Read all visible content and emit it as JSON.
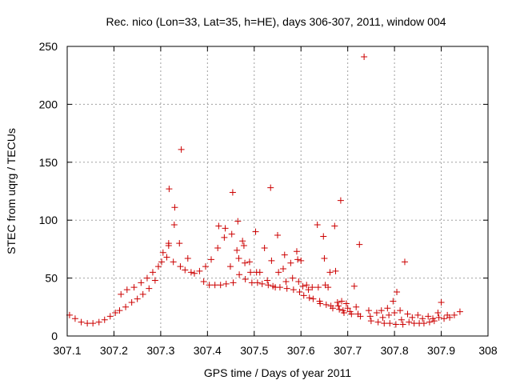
{
  "chart_data": {
    "type": "scatter",
    "title": "Rec. nico (Lon=33, Lat=35, h=HE), days 306-307, 2011, window 004",
    "xlabel": "GPS time / Days of year 2011",
    "ylabel": "STEC from uqrg / TECUs",
    "xlim": [
      307.1,
      308.0
    ],
    "ylim": [
      0,
      250
    ],
    "xticks": [
      "307.1",
      "307.2",
      "307.3",
      "307.4",
      "307.5",
      "307.6",
      "307.7",
      "307.8",
      "307.9",
      "308"
    ],
    "yticks": [
      "0",
      "50",
      "100",
      "150",
      "200",
      "250"
    ],
    "xtick_values": [
      307.1,
      307.2,
      307.3,
      307.4,
      307.5,
      307.6,
      307.7,
      307.8,
      307.9,
      308.0
    ],
    "ytick_values": [
      0,
      50,
      100,
      150,
      200,
      250
    ],
    "grid": true,
    "marker_color": "#cc0000",
    "series": [
      {
        "name": "STEC",
        "marker": "plus",
        "points": [
          [
            307.105,
            18
          ],
          [
            307.117,
            15
          ],
          [
            307.13,
            12
          ],
          [
            307.143,
            11
          ],
          [
            307.155,
            11
          ],
          [
            307.168,
            12
          ],
          [
            307.18,
            14
          ],
          [
            307.192,
            17
          ],
          [
            307.203,
            20
          ],
          [
            307.212,
            22
          ],
          [
            307.215,
            36
          ],
          [
            307.225,
            25
          ],
          [
            307.228,
            40
          ],
          [
            307.238,
            29
          ],
          [
            307.243,
            42
          ],
          [
            307.25,
            32
          ],
          [
            307.258,
            46
          ],
          [
            307.262,
            36
          ],
          [
            307.271,
            50
          ],
          [
            307.275,
            41
          ],
          [
            307.283,
            55
          ],
          [
            307.288,
            48
          ],
          [
            307.295,
            60
          ],
          [
            307.302,
            64
          ],
          [
            307.305,
            72
          ],
          [
            307.313,
            68
          ],
          [
            307.317,
            80
          ],
          [
            307.317,
            78
          ],
          [
            307.318,
            127
          ],
          [
            307.327,
            64
          ],
          [
            307.329,
            96
          ],
          [
            307.33,
            111
          ],
          [
            307.34,
            80
          ],
          [
            307.342,
            60
          ],
          [
            307.344,
            161
          ],
          [
            307.352,
            57
          ],
          [
            307.358,
            67
          ],
          [
            307.365,
            55
          ],
          [
            307.372,
            54
          ],
          [
            307.383,
            56
          ],
          [
            307.392,
            47
          ],
          [
            307.396,
            60
          ],
          [
            307.404,
            44
          ],
          [
            307.408,
            66
          ],
          [
            307.416,
            44
          ],
          [
            307.422,
            76
          ],
          [
            307.424,
            95
          ],
          [
            307.428,
            44
          ],
          [
            307.436,
            85
          ],
          [
            307.438,
            93
          ],
          [
            307.44,
            45
          ],
          [
            307.449,
            60
          ],
          [
            307.452,
            88
          ],
          [
            307.454,
            124
          ],
          [
            307.455,
            46
          ],
          [
            307.463,
            74
          ],
          [
            307.465,
            99
          ],
          [
            307.467,
            67
          ],
          [
            307.468,
            53
          ],
          [
            307.475,
            82
          ],
          [
            307.478,
            78
          ],
          [
            307.48,
            63
          ],
          [
            307.481,
            49
          ],
          [
            307.49,
            64
          ],
          [
            307.492,
            55
          ],
          [
            307.495,
            46
          ],
          [
            307.503,
            90
          ],
          [
            307.505,
            55
          ],
          [
            307.507,
            46
          ],
          [
            307.512,
            55
          ],
          [
            307.517,
            45
          ],
          [
            307.522,
            76
          ],
          [
            307.528,
            48
          ],
          [
            307.53,
            44
          ],
          [
            307.535,
            128
          ],
          [
            307.537,
            65
          ],
          [
            307.54,
            43
          ],
          [
            307.545,
            42
          ],
          [
            307.55,
            87
          ],
          [
            307.552,
            55
          ],
          [
            307.555,
            42
          ],
          [
            307.562,
            58
          ],
          [
            307.565,
            70
          ],
          [
            307.568,
            47
          ],
          [
            307.57,
            41
          ],
          [
            307.578,
            63
          ],
          [
            307.582,
            50
          ],
          [
            307.584,
            40
          ],
          [
            307.591,
            73
          ],
          [
            307.593,
            66
          ],
          [
            307.595,
            47
          ],
          [
            307.597,
            38
          ],
          [
            307.6,
            65
          ],
          [
            307.604,
            43
          ],
          [
            307.606,
            35
          ],
          [
            307.612,
            44
          ],
          [
            307.616,
            40
          ],
          [
            307.618,
            33
          ],
          [
            307.624,
            42
          ],
          [
            307.626,
            32
          ],
          [
            307.635,
            96
          ],
          [
            307.637,
            42
          ],
          [
            307.64,
            30
          ],
          [
            307.641,
            28
          ],
          [
            307.648,
            86
          ],
          [
            307.65,
            67
          ],
          [
            307.652,
            44
          ],
          [
            307.654,
            27
          ],
          [
            307.658,
            42
          ],
          [
            307.662,
            55
          ],
          [
            307.664,
            26
          ],
          [
            307.668,
            24
          ],
          [
            307.672,
            95
          ],
          [
            307.674,
            56
          ],
          [
            307.678,
            29
          ],
          [
            307.68,
            26
          ],
          [
            307.682,
            23
          ],
          [
            307.685,
            117
          ],
          [
            307.687,
            30
          ],
          [
            307.69,
            22
          ],
          [
            307.692,
            20
          ],
          [
            307.697,
            28
          ],
          [
            307.7,
            24
          ],
          [
            307.705,
            21
          ],
          [
            307.708,
            19
          ],
          [
            307.714,
            43
          ],
          [
            307.718,
            25
          ],
          [
            307.722,
            19
          ],
          [
            307.725,
            79
          ],
          [
            307.727,
            17
          ],
          [
            307.735,
            241
          ],
          [
            307.745,
            22
          ],
          [
            307.748,
            17
          ],
          [
            307.75,
            13
          ],
          [
            307.762,
            20
          ],
          [
            307.765,
            12
          ],
          [
            307.772,
            22
          ],
          [
            307.775,
            16
          ],
          [
            307.778,
            11
          ],
          [
            307.785,
            24
          ],
          [
            307.788,
            18
          ],
          [
            307.79,
            11
          ],
          [
            307.797,
            30
          ],
          [
            307.8,
            20
          ],
          [
            307.803,
            10
          ],
          [
            307.805,
            38
          ],
          [
            307.812,
            22
          ],
          [
            307.815,
            14
          ],
          [
            307.818,
            10
          ],
          [
            307.822,
            64
          ],
          [
            307.828,
            19
          ],
          [
            307.831,
            12
          ],
          [
            307.838,
            16
          ],
          [
            307.842,
            11
          ],
          [
            307.85,
            18
          ],
          [
            307.853,
            11
          ],
          [
            307.86,
            15
          ],
          [
            307.863,
            11
          ],
          [
            307.872,
            17
          ],
          [
            307.875,
            12
          ],
          [
            307.882,
            15
          ],
          [
            307.885,
            13
          ],
          [
            307.893,
            20
          ],
          [
            307.895,
            16
          ],
          [
            307.9,
            29
          ],
          [
            307.906,
            15
          ],
          [
            307.913,
            18
          ],
          [
            307.918,
            16
          ],
          [
            307.928,
            18
          ],
          [
            307.94,
            21
          ]
        ]
      }
    ]
  }
}
